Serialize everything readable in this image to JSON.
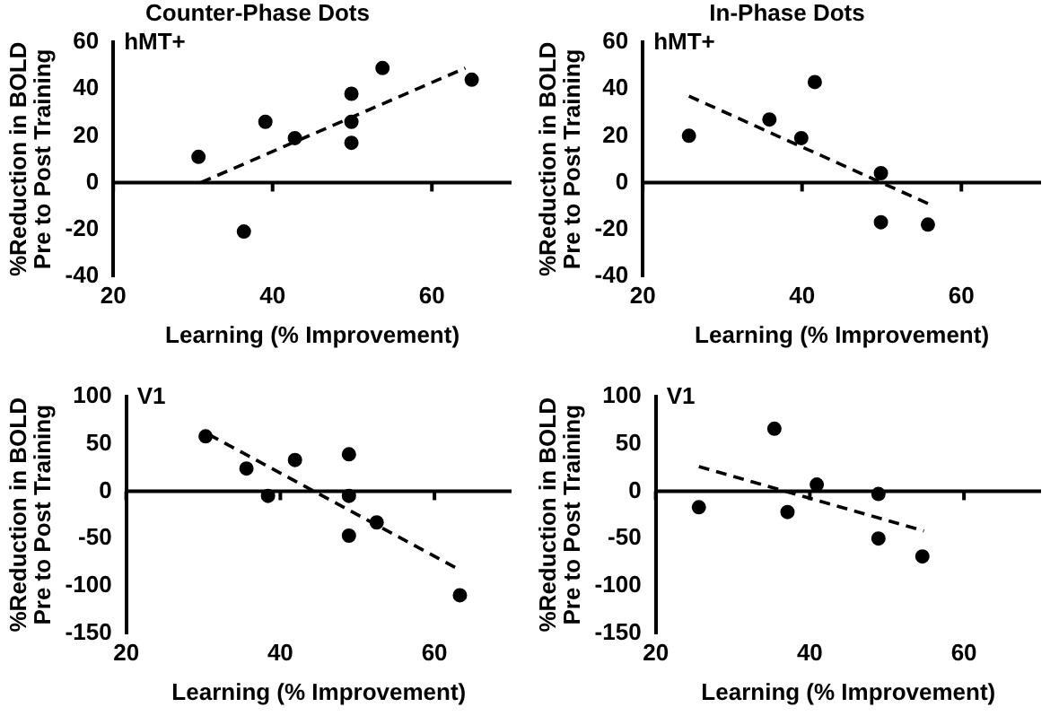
{
  "chart_data": [
    {
      "type": "scatter",
      "title": "Counter-Phase Dots",
      "xlabel": "Learning (% Improvement)",
      "ylabel": "%Reduction in BOLD\nPre to Post Training",
      "annotations": [
        "hMT+"
      ],
      "xlim": [
        20,
        70
      ],
      "xticks": [
        20,
        40,
        60
      ],
      "ylim": [
        -40,
        60
      ],
      "yticks": [
        -40,
        -20,
        0,
        20,
        40,
        60
      ],
      "grid": false,
      "legend": false,
      "ref_lines": [
        {
          "axis": "y",
          "value": 0,
          "color": "#000000"
        }
      ],
      "series": [
        {
          "type": "scatter",
          "color": "#000000",
          "marker": "circle",
          "x": [
            30.7,
            36.4,
            39.1,
            42.8,
            49.9,
            49.9,
            49.9,
            53.8,
            65.0
          ],
          "values": [
            11,
            -21,
            26,
            19,
            38,
            26,
            17,
            49,
            44
          ]
        },
        {
          "type": "line",
          "color": "#000000",
          "marker": "none",
          "line_style": "dashed",
          "x": [
            31.0,
            64.2
          ],
          "values": [
            0,
            49
          ]
        }
      ]
    },
    {
      "type": "scatter",
      "title": "In-Phase Dots",
      "xlabel": "Learning (% Improvement)",
      "ylabel": "%Reduction in BOLD\nPre to Post Training",
      "annotations": [
        "hMT+"
      ],
      "xlim": [
        20,
        70
      ],
      "xticks": [
        20,
        40,
        60
      ],
      "ylim": [
        -40,
        60
      ],
      "yticks": [
        -40,
        -20,
        0,
        20,
        40,
        60
      ],
      "grid": false,
      "legend": false,
      "ref_lines": [
        {
          "axis": "y",
          "value": 0,
          "color": "#000000"
        }
      ],
      "series": [
        {
          "type": "scatter",
          "color": "#000000",
          "marker": "circle",
          "x": [
            25.8,
            35.9,
            39.9,
            41.6,
            49.9,
            49.9,
            55.8
          ],
          "values": [
            20,
            27,
            19,
            43,
            4,
            -17,
            -18
          ]
        },
        {
          "type": "line",
          "color": "#000000",
          "marker": "none",
          "line_style": "dashed",
          "x": [
            25.8,
            55.8
          ],
          "values": [
            37,
            -9
          ]
        }
      ]
    },
    {
      "type": "scatter",
      "xlabel": "Learning (% Improvement)",
      "ylabel": "%Reduction in BOLD\nPre to Post Training",
      "annotations": [
        "V1"
      ],
      "xlim": [
        20,
        70
      ],
      "xticks": [
        20,
        40,
        60
      ],
      "ylim": [
        -150,
        100
      ],
      "yticks": [
        -150,
        -100,
        -50,
        0,
        50,
        100
      ],
      "grid": false,
      "legend": false,
      "ref_lines": [
        {
          "axis": "y",
          "value": 0,
          "color": "#000000"
        }
      ],
      "series": [
        {
          "type": "scatter",
          "color": "#000000",
          "marker": "circle",
          "x": [
            30.3,
            35.6,
            38.4,
            41.9,
            48.9,
            48.9,
            48.9,
            52.5,
            63.3
          ],
          "values": [
            58,
            24,
            -5,
            33,
            39,
            -5,
            -47,
            -33,
            -110
          ]
        },
        {
          "type": "line",
          "color": "#000000",
          "marker": "none",
          "line_style": "dashed",
          "x": [
            30.7,
            63.0
          ],
          "values": [
            60,
            -82
          ]
        }
      ]
    },
    {
      "type": "scatter",
      "xlabel": "Learning (% Improvement)",
      "ylabel": "%Reduction in BOLD\nPre to Post Training",
      "annotations": [
        "V1"
      ],
      "xlim": [
        20,
        70
      ],
      "xticks": [
        20,
        40,
        60
      ],
      "ylim": [
        -150,
        100
      ],
      "yticks": [
        -150,
        -100,
        -50,
        0,
        50,
        100
      ],
      "grid": false,
      "legend": false,
      "ref_lines": [
        {
          "axis": "y",
          "value": 0,
          "color": "#000000"
        }
      ],
      "series": [
        {
          "type": "scatter",
          "color": "#000000",
          "marker": "circle",
          "x": [
            25.6,
            35.4,
            37.1,
            40.9,
            48.9,
            48.9,
            54.6
          ],
          "values": [
            -17,
            66,
            -22,
            7,
            -3,
            -50,
            -69
          ]
        },
        {
          "type": "line",
          "color": "#000000",
          "marker": "none",
          "line_style": "dashed",
          "x": [
            25.6,
            54.8
          ],
          "values": [
            26,
            -42
          ]
        }
      ]
    }
  ]
}
